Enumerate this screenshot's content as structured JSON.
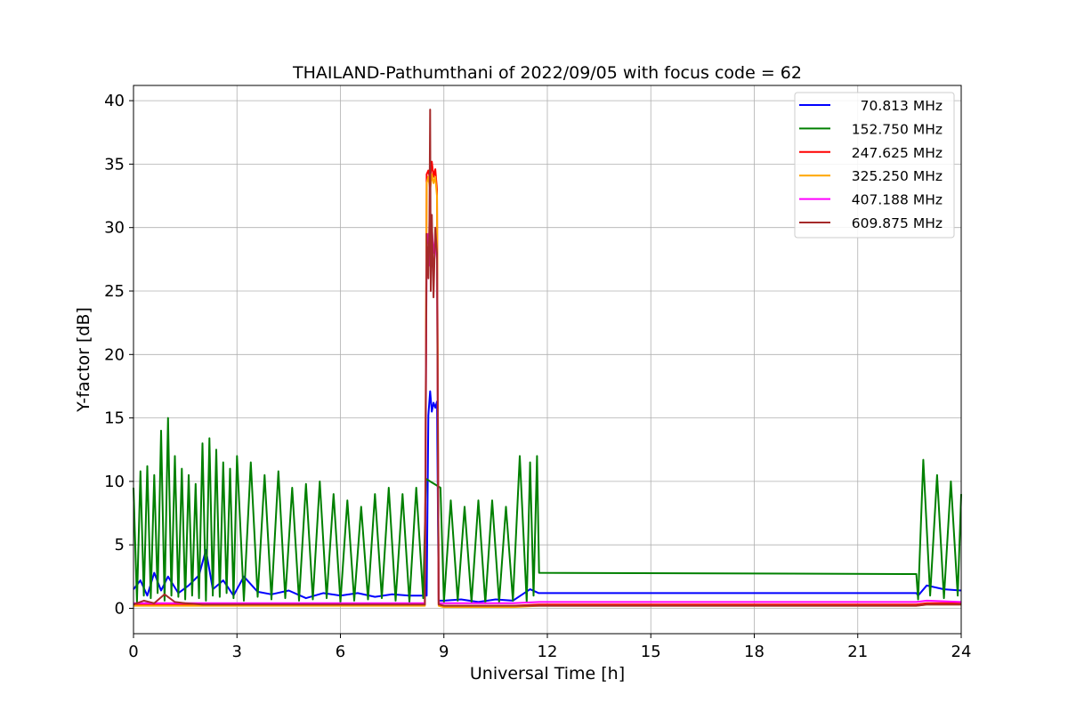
{
  "chart_data": {
    "type": "line",
    "title": "THAILAND-Pathumthani of 2022/09/05 with focus code = 62",
    "xlabel": "Universal Time [h]",
    "ylabel": "Y-factor [dB]",
    "xlim": [
      0,
      24
    ],
    "ylim": [
      -2,
      41.2
    ],
    "xticks": [
      0,
      3,
      6,
      9,
      12,
      15,
      18,
      21,
      24
    ],
    "yticks": [
      0,
      5,
      10,
      15,
      20,
      25,
      30,
      35,
      40
    ],
    "grid": true,
    "legend_position": "top-right",
    "series": [
      {
        "name": " 70.813 MHz",
        "color": "#0000ff",
        "x": [
          0,
          0.2,
          0.4,
          0.6,
          0.8,
          1.0,
          1.3,
          1.6,
          1.9,
          2.1,
          2.3,
          2.6,
          2.9,
          3.2,
          3.6,
          4.0,
          4.5,
          5.0,
          5.5,
          6.0,
          6.5,
          7.0,
          7.5,
          8.0,
          8.4,
          8.5,
          8.55,
          8.6,
          8.65,
          8.7,
          8.75,
          8.8,
          8.85,
          9.0,
          9.5,
          10.0,
          10.5,
          11.0,
          11.5,
          11.75,
          11.76,
          22.7,
          22.75,
          23.0,
          23.5,
          24.0
        ],
        "values": [
          1.5,
          2.2,
          1.0,
          2.8,
          1.4,
          2.5,
          1.2,
          1.8,
          2.6,
          4.6,
          1.5,
          2.2,
          1.0,
          2.5,
          1.3,
          1.1,
          1.4,
          0.8,
          1.2,
          1.0,
          1.2,
          0.9,
          1.1,
          1.0,
          1.0,
          1.0,
          15.2,
          17.1,
          15.5,
          16.2,
          15.8,
          16.3,
          0.6,
          0.6,
          0.7,
          0.5,
          0.7,
          0.6,
          1.5,
          1.2,
          1.2,
          1.2,
          1.0,
          1.8,
          1.5,
          1.4
        ]
      },
      {
        "name": "152.750 MHz",
        "color": "#008000",
        "x": [
          0,
          0.1,
          0.2,
          0.3,
          0.4,
          0.5,
          0.6,
          0.7,
          0.8,
          0.9,
          1.0,
          1.1,
          1.2,
          1.3,
          1.4,
          1.5,
          1.6,
          1.7,
          1.8,
          1.9,
          2.0,
          2.1,
          2.2,
          2.3,
          2.4,
          2.5,
          2.6,
          2.7,
          2.8,
          2.9,
          3.0,
          3.2,
          3.4,
          3.6,
          3.8,
          4.0,
          4.2,
          4.4,
          4.6,
          4.8,
          5.0,
          5.2,
          5.4,
          5.6,
          5.8,
          6.0,
          6.2,
          6.4,
          6.6,
          6.8,
          7.0,
          7.2,
          7.4,
          7.6,
          7.8,
          8.0,
          8.2,
          8.4,
          8.48,
          8.9,
          9.0,
          9.2,
          9.4,
          9.6,
          9.8,
          10.0,
          10.2,
          10.4,
          10.6,
          10.8,
          11.0,
          11.2,
          11.4,
          11.5,
          11.6,
          11.7,
          11.76,
          22.7,
          22.75,
          22.9,
          23.1,
          23.3,
          23.5,
          23.7,
          23.9,
          24.0
        ],
        "values": [
          9.5,
          0.5,
          10.8,
          1.0,
          11.2,
          0.8,
          10.5,
          1.2,
          14.0,
          0.6,
          15.0,
          1.0,
          12.0,
          0.9,
          11.0,
          0.7,
          10.5,
          1.0,
          9.8,
          0.8,
          13.0,
          0.6,
          13.4,
          1.0,
          12.5,
          0.9,
          11.5,
          1.2,
          11.0,
          0.8,
          12.0,
          0.6,
          11.5,
          0.9,
          10.5,
          0.7,
          10.8,
          0.8,
          9.5,
          0.6,
          9.8,
          0.7,
          10.0,
          0.8,
          9.0,
          0.5,
          8.5,
          0.6,
          8.0,
          0.7,
          9.0,
          0.8,
          9.5,
          0.6,
          9.0,
          0.5,
          9.5,
          0.8,
          10.2,
          9.5,
          0.5,
          8.5,
          0.6,
          8.0,
          0.5,
          8.5,
          0.4,
          8.5,
          0.5,
          8.0,
          0.6,
          12.0,
          0.5,
          11.5,
          1.0,
          12.0,
          2.8,
          2.7,
          0.7,
          11.7,
          1.0,
          10.5,
          0.8,
          10.0,
          1.0,
          9.0
        ]
      },
      {
        "name": "247.625 MHz",
        "color": "#ff0000",
        "x": [
          0,
          1.0,
          2.0,
          3.0,
          4.0,
          5.0,
          6.0,
          7.0,
          8.0,
          8.45,
          8.5,
          8.55,
          8.6,
          8.65,
          8.7,
          8.75,
          8.8,
          8.85,
          9.0,
          10.0,
          11.0,
          11.76,
          22.7,
          23.0,
          24.0
        ],
        "values": [
          0.3,
          0.3,
          0.3,
          0.3,
          0.3,
          0.3,
          0.3,
          0.3,
          0.3,
          0.3,
          34.2,
          34.5,
          33.8,
          35.2,
          34.0,
          34.6,
          33.0,
          0.3,
          0.2,
          0.2,
          0.2,
          0.3,
          0.3,
          0.4,
          0.4
        ]
      },
      {
        "name": "325.250 MHz",
        "color": "#ffa500",
        "x": [
          0,
          1.0,
          2.0,
          3.0,
          4.0,
          5.0,
          6.0,
          7.0,
          8.0,
          8.45,
          8.5,
          8.55,
          8.6,
          8.65,
          8.7,
          8.75,
          8.8,
          8.85,
          9.0,
          10.0,
          11.0,
          11.76,
          22.7,
          23.0,
          24.0
        ],
        "values": [
          0.2,
          0.2,
          0.2,
          0.2,
          0.2,
          0.2,
          0.2,
          0.2,
          0.2,
          0.2,
          33.5,
          34.0,
          33.0,
          34.2,
          33.5,
          34.0,
          32.5,
          0.2,
          0.1,
          0.1,
          0.1,
          0.2,
          0.2,
          0.3,
          0.3
        ]
      },
      {
        "name": "407.188 MHz",
        "color": "#ff00ff",
        "x": [
          0,
          1.0,
          2.0,
          3.0,
          4.0,
          5.0,
          6.0,
          7.0,
          8.0,
          8.45,
          8.5,
          8.55,
          8.6,
          8.65,
          8.7,
          8.75,
          8.8,
          8.85,
          9.0,
          10.0,
          11.0,
          11.76,
          22.7,
          23.0,
          24.0
        ],
        "values": [
          0.4,
          0.4,
          0.4,
          0.4,
          0.4,
          0.4,
          0.4,
          0.4,
          0.4,
          0.4,
          28.5,
          29.5,
          27.0,
          30.0,
          28.0,
          29.0,
          27.5,
          0.4,
          0.4,
          0.4,
          0.4,
          0.5,
          0.5,
          0.6,
          0.5
        ]
      },
      {
        "name": "609.875 MHz",
        "color": "#a52a2a",
        "x": [
          0,
          0.3,
          0.6,
          0.9,
          1.2,
          1.5,
          2.0,
          3.0,
          4.0,
          5.0,
          6.0,
          7.0,
          8.0,
          8.45,
          8.5,
          8.55,
          8.58,
          8.6,
          8.62,
          8.65,
          8.7,
          8.75,
          8.8,
          8.85,
          9.0,
          10.0,
          11.0,
          11.76,
          22.7,
          23.0,
          24.0
        ],
        "values": [
          0.3,
          0.6,
          0.4,
          1.1,
          0.5,
          0.4,
          0.3,
          0.3,
          0.3,
          0.3,
          0.3,
          0.3,
          0.3,
          0.3,
          29.5,
          26.0,
          30.5,
          39.3,
          25.0,
          31.0,
          24.5,
          30.0,
          28.0,
          0.3,
          0.2,
          0.2,
          0.2,
          0.2,
          0.2,
          0.3,
          0.3
        ]
      }
    ]
  }
}
